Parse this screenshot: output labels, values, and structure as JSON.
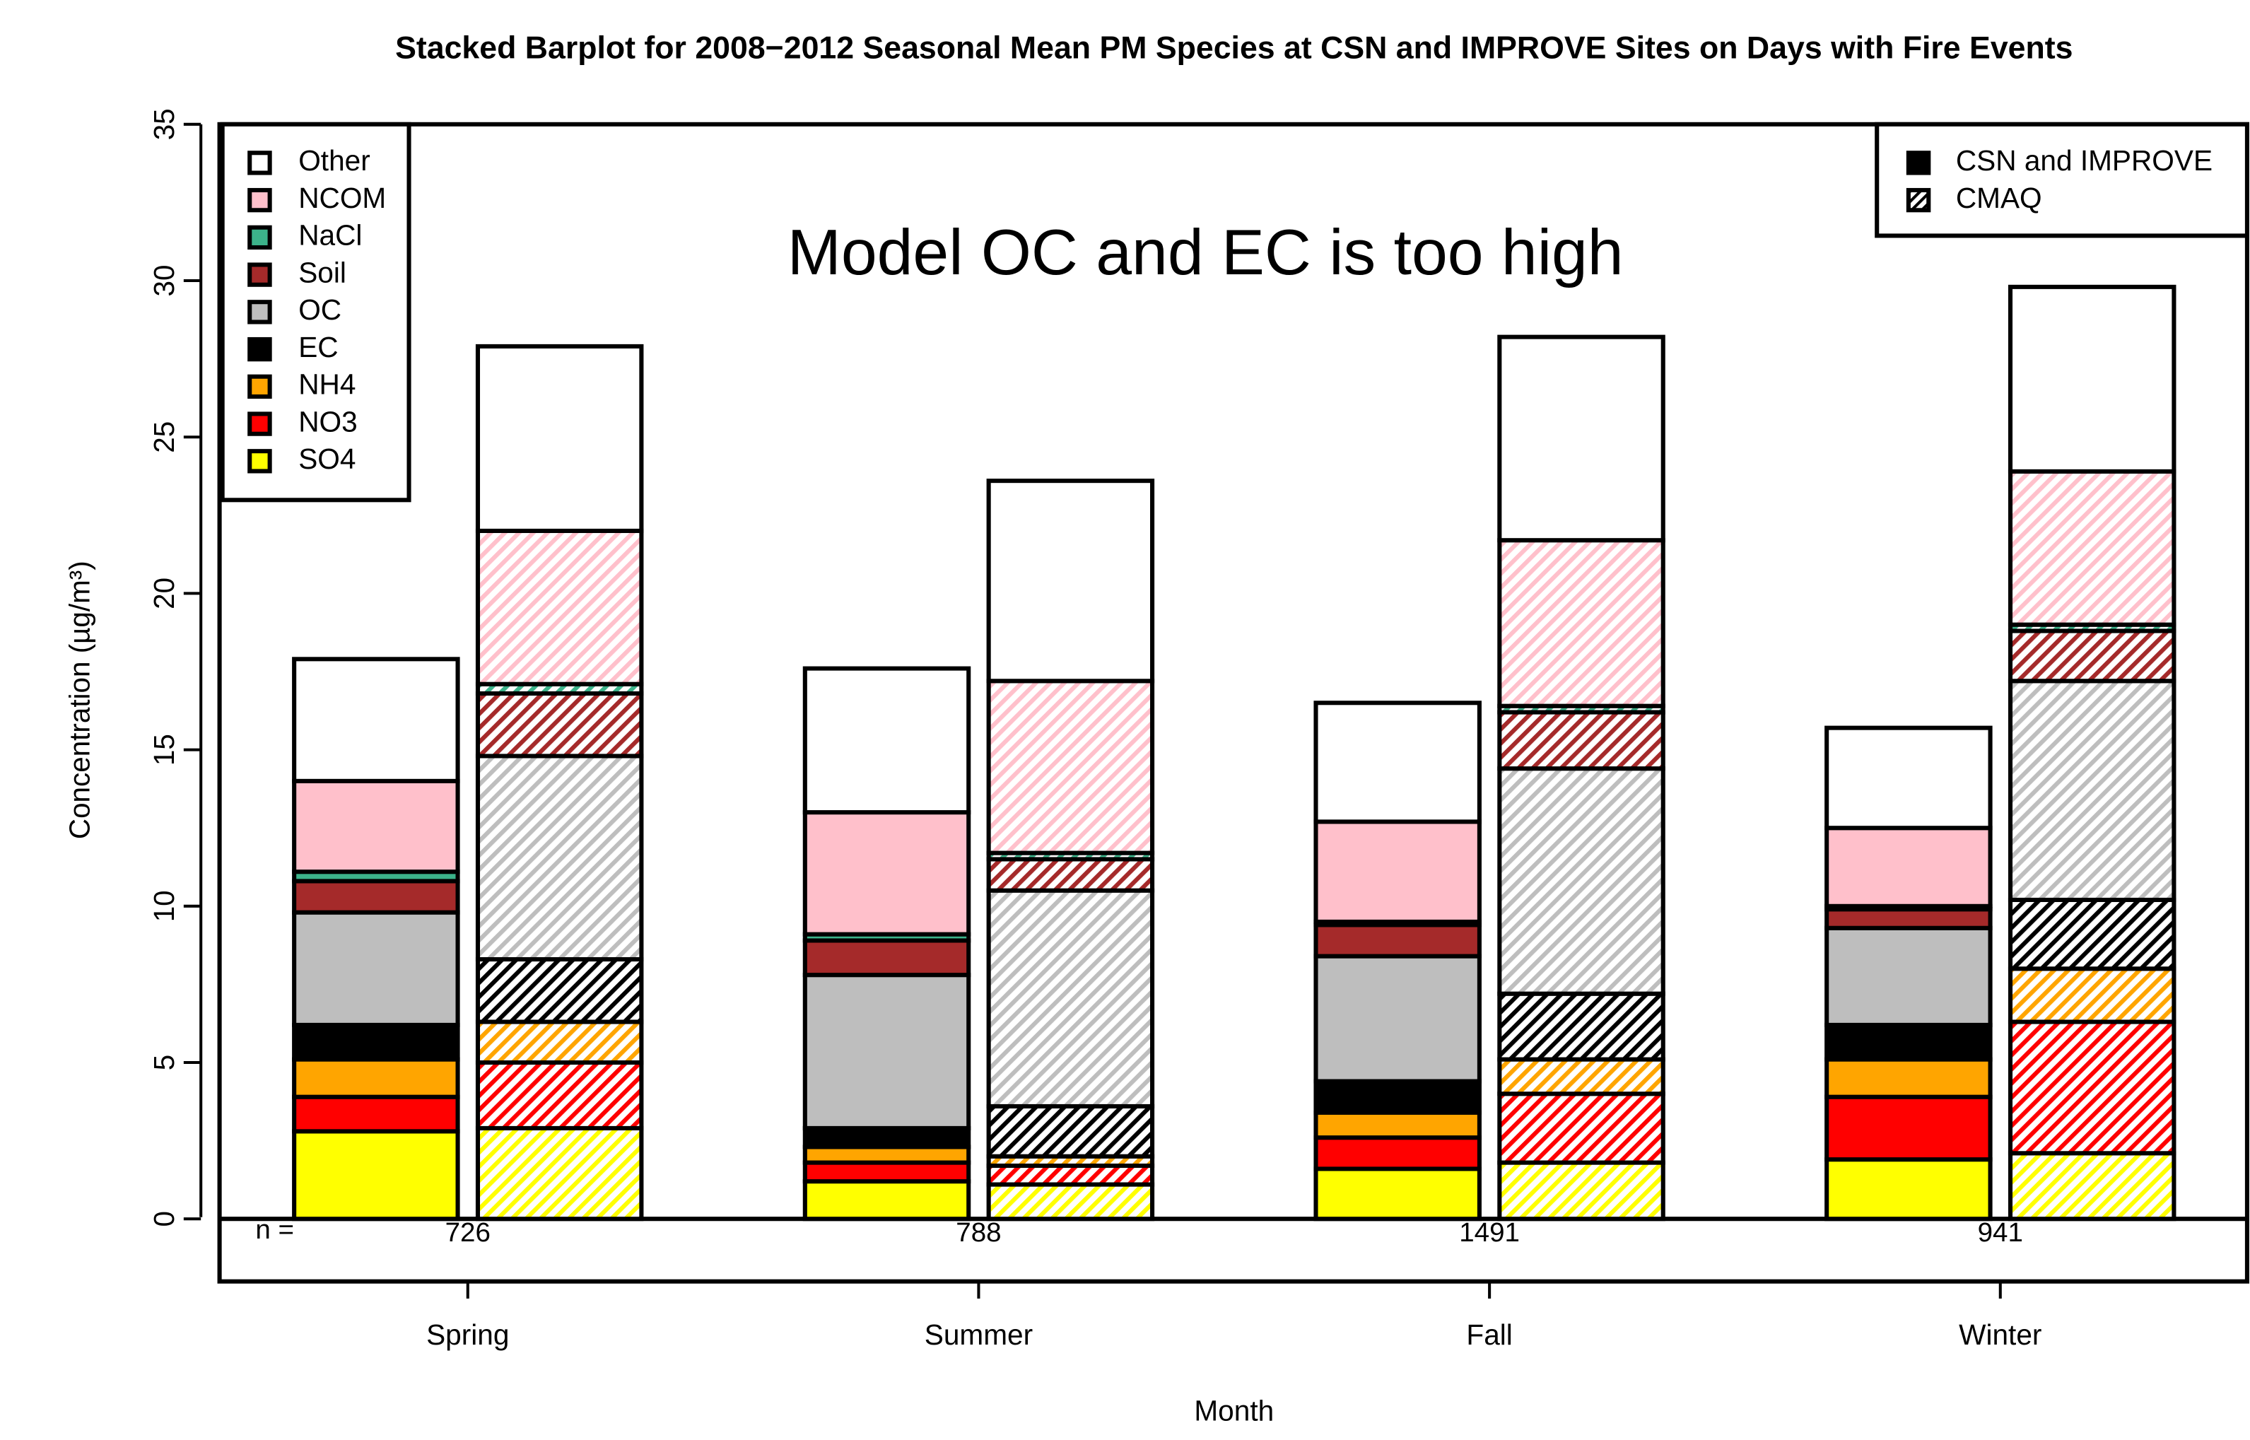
{
  "chart_data": {
    "type": "bar",
    "stacked": true,
    "title": "Stacked Barplot for 2008−2012 Seasonal Mean PM Species at CSN and IMPROVE Sites on Days with Fire Events",
    "annotation": "Model OC and EC is too high",
    "x_label": "Month",
    "y_label": "Concentration (µg/m³)",
    "categories": [
      "Spring",
      "Summer",
      "Fall",
      "Winter"
    ],
    "n_label": "n =",
    "n": [
      726,
      788,
      1491,
      941
    ],
    "groups": [
      {
        "name": "CSN and IMPROVE",
        "hatched": false
      },
      {
        "name": "CMAQ",
        "hatched": true
      }
    ],
    "series": [
      {
        "name": "SO4",
        "color": "#ffff00",
        "values": [
          [
            2.8,
            1.2,
            1.6,
            1.9
          ],
          [
            2.9,
            1.1,
            1.8,
            2.1
          ]
        ]
      },
      {
        "name": "NO3",
        "color": "#ff0000",
        "values": [
          [
            1.1,
            0.6,
            1.0,
            2.0
          ],
          [
            2.1,
            0.6,
            2.2,
            4.2
          ]
        ]
      },
      {
        "name": "NH4",
        "color": "#ffa500",
        "values": [
          [
            1.2,
            0.5,
            0.8,
            1.2
          ],
          [
            1.3,
            0.3,
            1.1,
            1.7
          ]
        ]
      },
      {
        "name": "EC",
        "color": "#000000",
        "values": [
          [
            1.1,
            0.6,
            1.0,
            1.1
          ],
          [
            2.0,
            1.6,
            2.1,
            2.2
          ]
        ]
      },
      {
        "name": "OC",
        "color": "#bebebe",
        "values": [
          [
            3.6,
            4.9,
            4.0,
            3.1
          ],
          [
            6.5,
            6.9,
            7.2,
            7.0
          ]
        ]
      },
      {
        "name": "Soil",
        "color": "#a52a2a",
        "values": [
          [
            1.0,
            1.1,
            1.0,
            0.6
          ],
          [
            2.0,
            1.0,
            1.8,
            1.6
          ]
        ]
      },
      {
        "name": "NaCl",
        "color": "#3cb38a",
        "values": [
          [
            0.3,
            0.2,
            0.1,
            0.1
          ],
          [
            0.3,
            0.2,
            0.2,
            0.2
          ]
        ]
      },
      {
        "name": "NCOM",
        "color": "#ffc0cb",
        "values": [
          [
            2.9,
            3.9,
            3.2,
            2.5
          ],
          [
            4.9,
            5.5,
            5.3,
            4.9
          ]
        ]
      },
      {
        "name": "Other",
        "color": "#ffffff",
        "values": [
          [
            3.9,
            4.6,
            3.8,
            3.2
          ],
          [
            5.9,
            6.4,
            6.5,
            5.9
          ]
        ]
      }
    ],
    "ylim": [
      -2,
      35
    ],
    "yticks": [
      0,
      5,
      10,
      15,
      20,
      25,
      30,
      35
    ]
  }
}
